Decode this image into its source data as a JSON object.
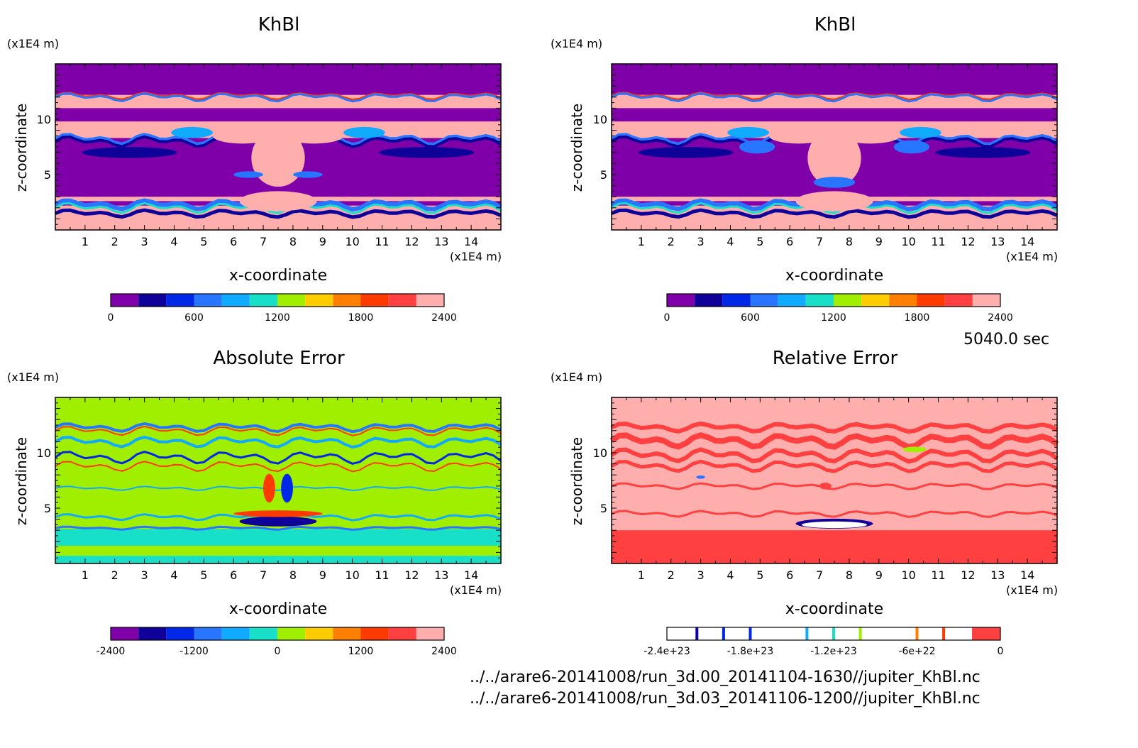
{
  "time_label": "5040.0 sec",
  "file_paths": [
    "../../arare6-20141008/run_3d.00_20141104-1630//jupiter_KhBl.nc",
    "../../arare6-20141008/run_3d.03_20141106-1200//jupiter_KhBl.nc"
  ],
  "colors": {
    "rainbow": [
      "#7f00a8",
      "#10009a",
      "#0028e6",
      "#2876ff",
      "#10aaff",
      "#18e0c8",
      "#a0ee00",
      "#ffcc00",
      "#ff7f00",
      "#ff3a00",
      "#ff4040",
      "#ffaeae"
    ],
    "background_pink": "#ffaeae",
    "purple": "#7f00a8",
    "green": "#a0ee00",
    "red": "#ff4040"
  },
  "chart_data": [
    {
      "type": "heatmap",
      "title": "KhBl",
      "xlabel": "x-coordinate",
      "ylabel": "z-coordinate",
      "x_unit": "(x1E4 m)",
      "y_unit": "(x1E4 m)",
      "xlim": [
        0,
        15
      ],
      "ylim": [
        0,
        15
      ],
      "x_ticks": [
        "1",
        "2",
        "3",
        "4",
        "5",
        "6",
        "7",
        "8",
        "9",
        "10",
        "11",
        "12",
        "13",
        "14"
      ],
      "y_ticks": [
        "5",
        "10"
      ],
      "colorbar": {
        "min": 0,
        "max": 2400,
        "ticks": [
          "0",
          "600",
          "1200",
          "1800",
          "2400"
        ]
      }
    },
    {
      "type": "heatmap",
      "title": "KhBl",
      "xlabel": "x-coordinate",
      "ylabel": "z-coordinate",
      "x_unit": "(x1E4 m)",
      "y_unit": "(x1E4 m)",
      "xlim": [
        0,
        15
      ],
      "ylim": [
        0,
        15
      ],
      "x_ticks": [
        "1",
        "2",
        "3",
        "4",
        "5",
        "6",
        "7",
        "8",
        "9",
        "10",
        "11",
        "12",
        "13",
        "14"
      ],
      "y_ticks": [
        "5",
        "10"
      ],
      "colorbar": {
        "min": 0,
        "max": 2400,
        "ticks": [
          "0",
          "600",
          "1200",
          "1800",
          "2400"
        ]
      }
    },
    {
      "type": "heatmap",
      "title": "Absolute Error",
      "xlabel": "x-coordinate",
      "ylabel": "z-coordinate",
      "x_unit": "(x1E4 m)",
      "y_unit": "(x1E4 m)",
      "xlim": [
        0,
        15
      ],
      "ylim": [
        0,
        15
      ],
      "x_ticks": [
        "1",
        "2",
        "3",
        "4",
        "5",
        "6",
        "7",
        "8",
        "9",
        "10",
        "11",
        "12",
        "13",
        "14"
      ],
      "y_ticks": [
        "5",
        "10"
      ],
      "colorbar": {
        "min": -2400,
        "max": 2400,
        "ticks": [
          "-2400",
          "-1200",
          "0",
          "1200",
          "2400"
        ]
      }
    },
    {
      "type": "heatmap",
      "title": "Relative Error",
      "xlabel": "x-coordinate",
      "ylabel": "z-coordinate",
      "x_unit": "(x1E4 m)",
      "y_unit": "(x1E4 m)",
      "xlim": [
        0,
        15
      ],
      "ylim": [
        0,
        15
      ],
      "x_ticks": [
        "1",
        "2",
        "3",
        "4",
        "5",
        "6",
        "7",
        "8",
        "9",
        "10",
        "11",
        "12",
        "13",
        "14"
      ],
      "y_ticks": [
        "5",
        "10"
      ],
      "colorbar": {
        "min": -2.4e+23,
        "max": 0,
        "ticks": [
          "-2.4e+23",
          "-1.8e+23",
          "-1.2e+23",
          "-6e+22",
          "0"
        ]
      }
    }
  ]
}
